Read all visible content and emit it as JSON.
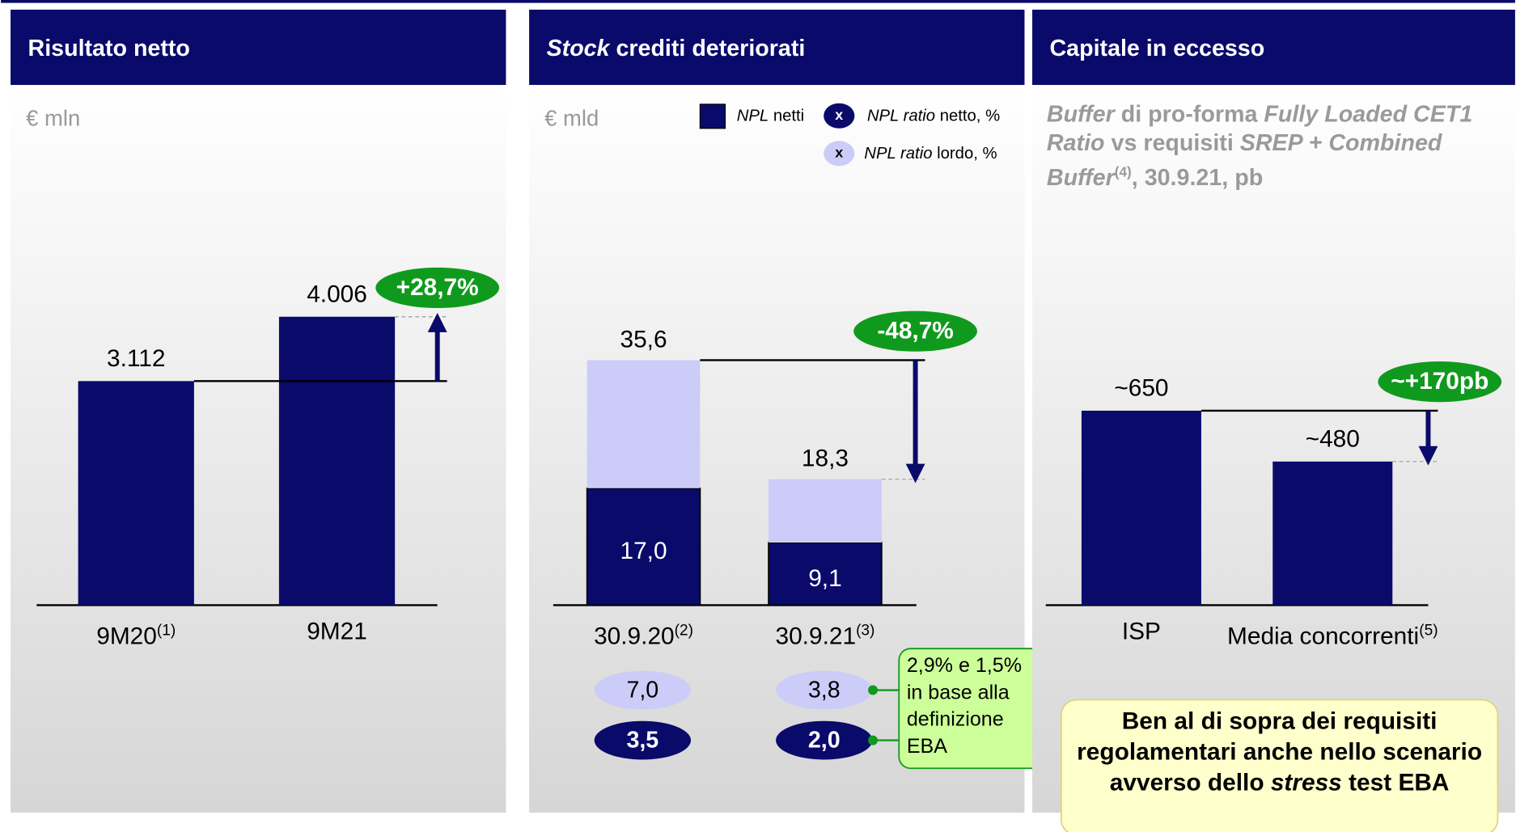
{
  "chart_data": [
    {
      "type": "bar",
      "title": [
        {
          "text": "Risultato netto"
        }
      ],
      "unit": "€ mln",
      "categories": [
        "9M20",
        "9M21"
      ],
      "category_notes": [
        "(1)",
        null
      ],
      "values": [
        3112,
        4006
      ],
      "value_labels": [
        "3.112",
        "4.006"
      ],
      "color": "#0a0a6b",
      "change": "+28,7%"
    },
    {
      "type": "stacked_bar",
      "title": [
        {
          "text": "Stock",
          "italic": true
        },
        {
          "text": " crediti deteriorati"
        }
      ],
      "unit": "€ mld",
      "categories": [
        "30.9.20",
        "30.9.21"
      ],
      "category_notes": [
        "(2)",
        "(3)"
      ],
      "series": [
        {
          "name": [
            {
              "text": "NPL",
              "italic": true
            },
            {
              "text": " netti"
            }
          ],
          "color": "#0a0a6b",
          "values": [
            17.0,
            9.1
          ],
          "value_labels": [
            "17,0",
            "9,1"
          ]
        },
        {
          "color": "#ccccf8",
          "values": [
            18.6,
            9.2
          ]
        }
      ],
      "totals": [
        35.6,
        18.3
      ],
      "total_labels": [
        "35,6",
        "18,3"
      ],
      "ratios": [
        {
          "name": [
            {
              "text": "NPL ratio",
              "italic": true
            },
            {
              "text": " netto, %"
            }
          ],
          "marker": "x",
          "color": "#0a0a6b",
          "values": [
            3.5,
            2.0
          ],
          "value_labels": [
            "3,5",
            "2,0"
          ]
        },
        {
          "name": [
            {
              "text": "NPL ratio",
              "italic": true
            },
            {
              "text": " lordo, %"
            }
          ],
          "marker": "x",
          "color": "#ccccf8",
          "values": [
            7.0,
            3.8
          ],
          "value_labels": [
            "7,0",
            "3,8"
          ]
        }
      ],
      "change": "-48,7%",
      "callout": "2,9% e 1,5% in base alla definizione EBA"
    },
    {
      "type": "bar",
      "title": [
        {
          "text": "Capitale in eccesso"
        }
      ],
      "subtitle": [
        {
          "text": "Buffer",
          "italic": true
        },
        {
          "text": " di pro-forma "
        },
        {
          "text": "Fully Loaded CET1 Ratio",
          "italic": true
        },
        {
          "text": " vs requisiti "
        },
        {
          "text": "SREP + Combined Buffer",
          "italic": true
        },
        {
          "text": "(4)",
          "sup": true
        },
        {
          "text": ", 30.9.21, pb"
        }
      ],
      "categories": [
        "ISP",
        "Media concorrenti"
      ],
      "category_notes": [
        null,
        "(5)"
      ],
      "values": [
        650,
        480
      ],
      "value_labels": [
        "~650",
        "~480"
      ],
      "color": "#0a0a6b",
      "change": "~+170pb",
      "note": [
        {
          "text": "Ben al di sopra dei requisiti regolamentari anche nello scenario avverso dello "
        },
        {
          "text": "stress",
          "italic": true
        },
        {
          "text": " test"
        },
        {
          "text": " EBA"
        }
      ]
    }
  ]
}
